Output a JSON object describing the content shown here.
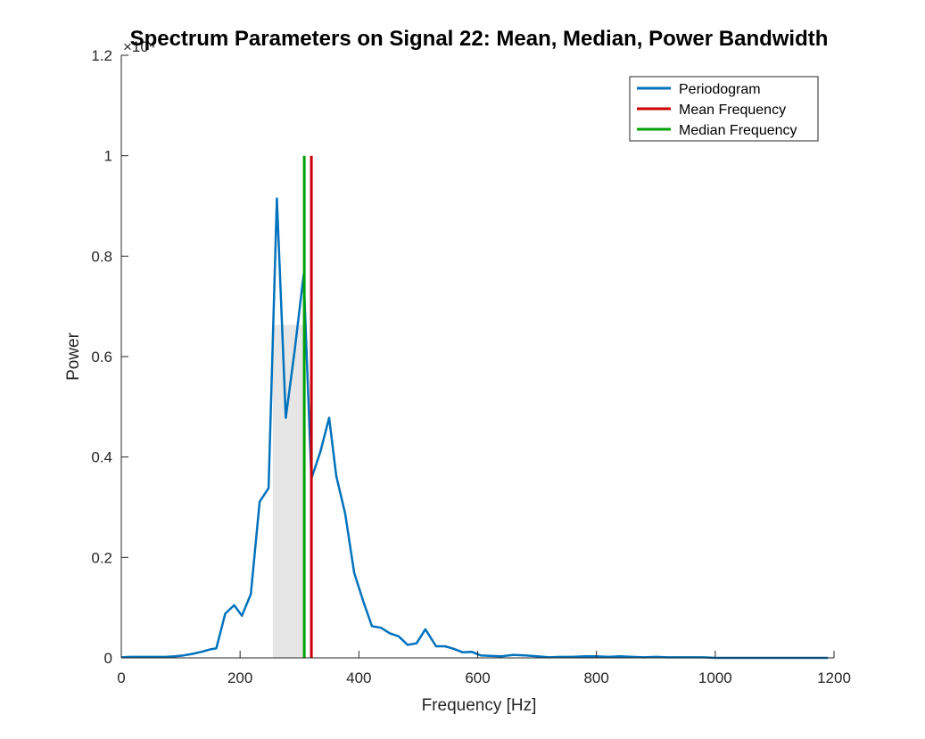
{
  "chart_data": {
    "type": "line",
    "title": "Spectrum Parameters on Signal 22: Mean, Median, Power Bandwidth",
    "xlabel": "Frequency [Hz]",
    "ylabel": "Power",
    "y_exponent_label": "×10⁴",
    "xlim": [
      0,
      1200
    ],
    "ylim": [
      0,
      12000
    ],
    "xticks": [
      0,
      200,
      400,
      600,
      800,
      1000,
      1200
    ],
    "xtick_labels": [
      "0",
      "200",
      "400",
      "600",
      "800",
      "1000",
      "1200"
    ],
    "yticks": [
      0,
      2000,
      4000,
      6000,
      8000,
      10000,
      12000
    ],
    "ytick_labels": [
      "0",
      "0.2",
      "0.4",
      "0.6",
      "0.8",
      "1",
      "1.2"
    ],
    "grid": false,
    "legend_position": "top-right",
    "series": [
      {
        "name": "Periodogram",
        "color": "#0072BD",
        "x": [
          0,
          15,
          30,
          45,
          60,
          75,
          90,
          105,
          120,
          135,
          150,
          160,
          175,
          190,
          203,
          218,
          233,
          248,
          262,
          277,
          292,
          307,
          320,
          335,
          350,
          362,
          377,
          392,
          407,
          422,
          437,
          452,
          467,
          482,
          497,
          512,
          530,
          545,
          560,
          575,
          590,
          605,
          620,
          640,
          660,
          680,
          700,
          720,
          740,
          760,
          780,
          800,
          820,
          840,
          860,
          880,
          900,
          920,
          940,
          960,
          980,
          1000,
          1050,
          1100,
          1150,
          1190
        ],
        "y": [
          10,
          20,
          20,
          20,
          20,
          20,
          30,
          50,
          80,
          120,
          170,
          190,
          880,
          1050,
          840,
          1270,
          3110,
          3380,
          9150,
          4780,
          6130,
          7630,
          3570,
          4100,
          4780,
          3620,
          2870,
          1700,
          1140,
          630,
          600,
          490,
          430,
          260,
          290,
          570,
          230,
          230,
          180,
          110,
          120,
          50,
          40,
          30,
          60,
          50,
          30,
          10,
          20,
          20,
          30,
          30,
          20,
          30,
          20,
          10,
          20,
          10,
          10,
          10,
          10,
          0,
          0,
          0,
          0,
          0
        ]
      },
      {
        "name": "Mean Frequency",
        "color": "#CC0000",
        "x": [
          320,
          320
        ],
        "y": [
          0,
          10000
        ]
      },
      {
        "name": "Median Frequency",
        "color": "#00A000",
        "x": [
          308,
          308
        ],
        "y": [
          0,
          10000
        ]
      }
    ],
    "power_bandwidth": {
      "x_range": [
        255,
        310
      ],
      "level": 6630,
      "color": "#E6E6E6"
    }
  }
}
